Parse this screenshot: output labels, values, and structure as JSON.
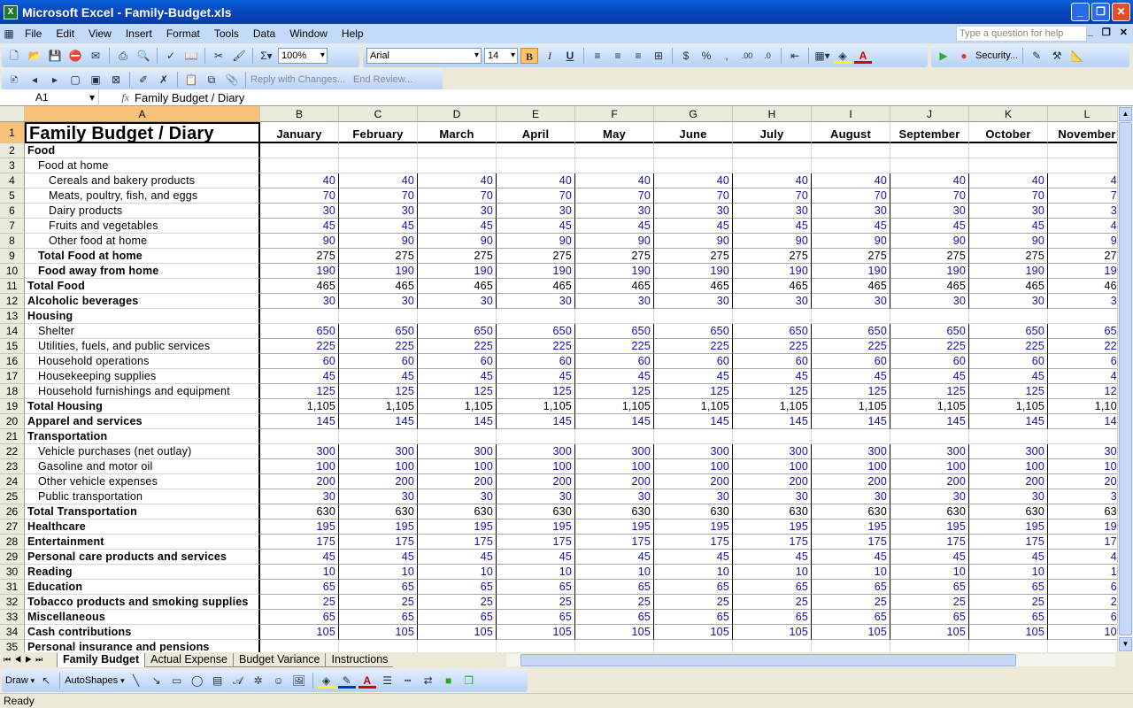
{
  "window": {
    "title": "Microsoft Excel - Family-Budget.xls"
  },
  "menu": [
    "File",
    "Edit",
    "View",
    "Insert",
    "Format",
    "Tools",
    "Data",
    "Window",
    "Help"
  ],
  "help_placeholder": "Type a question for help",
  "toolbar": {
    "zoom": "100%",
    "font": "Arial",
    "size": "14",
    "bold": "B",
    "italic": "I",
    "underline": "U",
    "security": "Security...",
    "reply": "Reply with Changes...",
    "end_review": "End Review..."
  },
  "formula": {
    "cell": "A1",
    "fx": "fx",
    "value": "Family Budget / Diary"
  },
  "columns": [
    "A",
    "B",
    "C",
    "D",
    "E",
    "F",
    "G",
    "H",
    "I",
    "J",
    "K",
    "L"
  ],
  "sheet": {
    "title": "Family Budget / Diary",
    "months": [
      "January",
      "February",
      "March",
      "April",
      "May",
      "June",
      "July",
      "August",
      "September",
      "October",
      "November"
    ],
    "rows": [
      {
        "n": 2,
        "label": "Food",
        "indent": 0,
        "bold": true,
        "value": null
      },
      {
        "n": 3,
        "label": "Food at home",
        "indent": 1,
        "bold": false,
        "value": null
      },
      {
        "n": 4,
        "label": "Cereals and bakery products",
        "indent": 2,
        "bold": false,
        "value": "40",
        "input": true
      },
      {
        "n": 5,
        "label": "Meats, poultry, fish, and eggs",
        "indent": 2,
        "bold": false,
        "value": "70",
        "input": true
      },
      {
        "n": 6,
        "label": "Dairy products",
        "indent": 2,
        "bold": false,
        "value": "30",
        "input": true
      },
      {
        "n": 7,
        "label": "Fruits and vegetables",
        "indent": 2,
        "bold": false,
        "value": "45",
        "input": true
      },
      {
        "n": 8,
        "label": "Other food at home",
        "indent": 2,
        "bold": false,
        "value": "90",
        "input": true
      },
      {
        "n": 9,
        "label": "Total Food at home",
        "indent": 1,
        "bold": true,
        "value": "275",
        "input": false
      },
      {
        "n": 10,
        "label": "Food away from home",
        "indent": 1,
        "bold": true,
        "value": "190",
        "input": true
      },
      {
        "n": 11,
        "label": "Total Food",
        "indent": 0,
        "bold": true,
        "value": "465",
        "input": false
      },
      {
        "n": 12,
        "label": "Alcoholic beverages",
        "indent": 0,
        "bold": true,
        "value": "30",
        "input": true
      },
      {
        "n": 13,
        "label": "Housing",
        "indent": 0,
        "bold": true,
        "value": null
      },
      {
        "n": 14,
        "label": "Shelter",
        "indent": 1,
        "bold": false,
        "value": "650",
        "input": true
      },
      {
        "n": 15,
        "label": "Utilities, fuels, and public services",
        "indent": 1,
        "bold": false,
        "value": "225",
        "input": true
      },
      {
        "n": 16,
        "label": "Household operations",
        "indent": 1,
        "bold": false,
        "value": "60",
        "input": true
      },
      {
        "n": 17,
        "label": "Housekeeping supplies",
        "indent": 1,
        "bold": false,
        "value": "45",
        "input": true
      },
      {
        "n": 18,
        "label": "Household furnishings and equipment",
        "indent": 1,
        "bold": false,
        "value": "125",
        "input": true
      },
      {
        "n": 19,
        "label": "Total Housing",
        "indent": 0,
        "bold": true,
        "value": "1,105",
        "input": false
      },
      {
        "n": 20,
        "label": "Apparel and services",
        "indent": 0,
        "bold": true,
        "value": "145",
        "input": true
      },
      {
        "n": 21,
        "label": "Transportation",
        "indent": 0,
        "bold": true,
        "value": null
      },
      {
        "n": 22,
        "label": "Vehicle purchases (net outlay)",
        "indent": 1,
        "bold": false,
        "value": "300",
        "input": true
      },
      {
        "n": 23,
        "label": "Gasoline and motor oil",
        "indent": 1,
        "bold": false,
        "value": "100",
        "input": true
      },
      {
        "n": 24,
        "label": "Other vehicle expenses",
        "indent": 1,
        "bold": false,
        "value": "200",
        "input": true
      },
      {
        "n": 25,
        "label": "Public transportation",
        "indent": 1,
        "bold": false,
        "value": "30",
        "input": true
      },
      {
        "n": 26,
        "label": "Total Transportation",
        "indent": 0,
        "bold": true,
        "value": "630",
        "input": false
      },
      {
        "n": 27,
        "label": "Healthcare",
        "indent": 0,
        "bold": true,
        "value": "195",
        "input": true
      },
      {
        "n": 28,
        "label": "Entertainment",
        "indent": 0,
        "bold": true,
        "value": "175",
        "input": true
      },
      {
        "n": 29,
        "label": "Personal care products and services",
        "indent": 0,
        "bold": true,
        "value": "45",
        "input": true
      },
      {
        "n": 30,
        "label": "Reading",
        "indent": 0,
        "bold": true,
        "value": "10",
        "input": true
      },
      {
        "n": 31,
        "label": "Education",
        "indent": 0,
        "bold": true,
        "value": "65",
        "input": true
      },
      {
        "n": 32,
        "label": "Tobacco products and smoking supplies",
        "indent": 0,
        "bold": true,
        "value": "25",
        "input": true
      },
      {
        "n": 33,
        "label": "Miscellaneous",
        "indent": 0,
        "bold": true,
        "value": "65",
        "input": true
      },
      {
        "n": 34,
        "label": "Cash contributions",
        "indent": 0,
        "bold": true,
        "value": "105",
        "input": true
      },
      {
        "n": 35,
        "label": "Personal insurance and pensions",
        "indent": 0,
        "bold": true,
        "value": null
      }
    ]
  },
  "tabs": [
    "Family Budget",
    "Actual Expense",
    "Budget Variance",
    "Instructions"
  ],
  "draw": {
    "draw": "Draw",
    "autoshapes": "AutoShapes"
  },
  "status": "Ready",
  "colors": {
    "input": "#1010b0",
    "selected_header": "#f9c27a",
    "titlebar": "#0842b8"
  }
}
